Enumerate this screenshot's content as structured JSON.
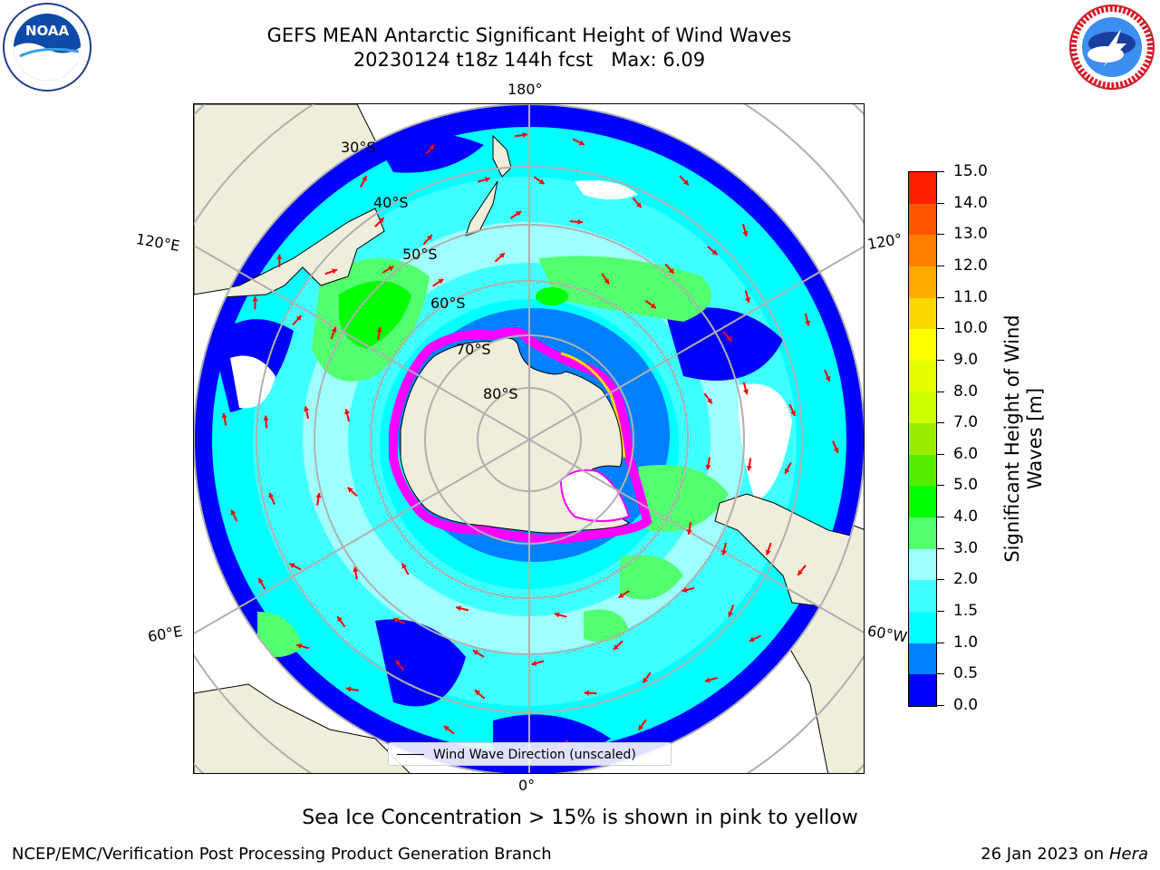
{
  "title": {
    "line1": "GEFS MEAN Antarctic Significant Height of Wind Waves",
    "line2": "20230124 t18z 144h fcst   Max: 6.09"
  },
  "logos": {
    "left": "NOAA",
    "right_text": "NATIONAL WEATHER SERVICE"
  },
  "map": {
    "lon_labels": {
      "top": "180°",
      "bottom": "0°",
      "left_upper": "120°E",
      "left_lower": "60°E",
      "right_upper": "120°",
      "right_lower": "60°W"
    },
    "lat_labels": [
      "30°S",
      "40°S",
      "50°S",
      "60°S",
      "70°S",
      "80°S"
    ],
    "legend_label": "Wind Wave Direction (unscaled)",
    "colors": {
      "land": "#efeedb",
      "ice": "#ff00ff",
      "arrow": "#ff0000",
      "grid": "#b0b0b0"
    }
  },
  "colorbar": {
    "title": "Significant Height of Wind Waves [m]",
    "ticks": [
      "0.0",
      "0.5",
      "1.0",
      "1.5",
      "2.0",
      "3.0",
      "4.0",
      "5.0",
      "6.0",
      "7.0",
      "8.0",
      "9.0",
      "10.0",
      "11.0",
      "12.0",
      "13.0",
      "14.0",
      "15.0"
    ],
    "colors": [
      "#0000ff",
      "#0080ff",
      "#00ffff",
      "#40ffff",
      "#a0ffff",
      "#52ff6e",
      "#00ff00",
      "#55ee00",
      "#99ee00",
      "#ccff00",
      "#e6ff00",
      "#ffff00",
      "#ffd700",
      "#ffaa00",
      "#ff8000",
      "#ff5500",
      "#ff2000"
    ]
  },
  "footer": {
    "note": "Sea Ice Concentration > 15% is shown in pink to yellow",
    "credit": "NCEP/EMC/Verification Post Processing Product Generation Branch",
    "date": "26 Jan 2023 on",
    "host": "Hera"
  }
}
